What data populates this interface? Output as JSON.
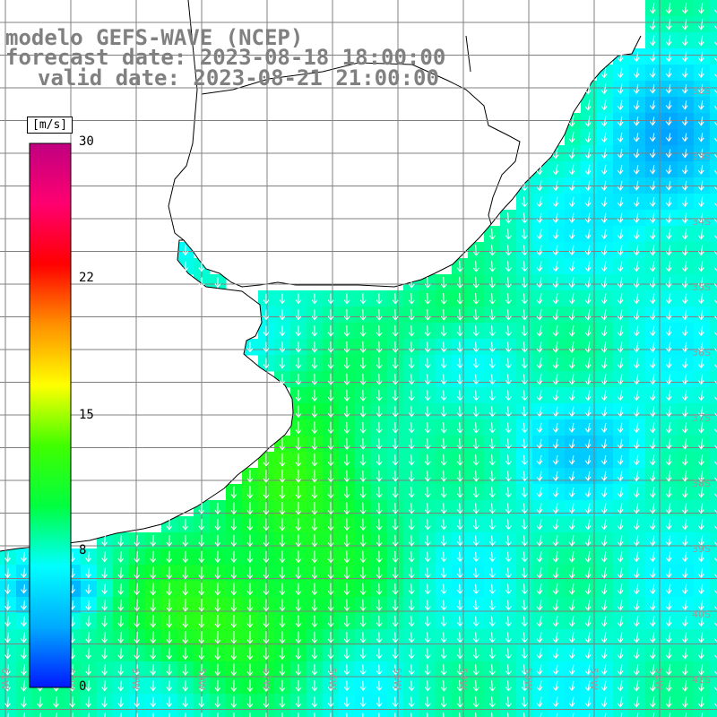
{
  "title": {
    "line1": "modelo GEFS-WAVE (NCEP)",
    "line2": "forecast date: 2023-08-18 18:00:00",
    "line3": "valid date: 2023-08-21 21:00:00"
  },
  "colorbar": {
    "unit": "[m/s]",
    "ticks": [
      {
        "label": "30",
        "value": 30
      },
      {
        "label": "22",
        "value": 22
      },
      {
        "label": "15",
        "value": 15
      },
      {
        "label": "8",
        "value": 8
      },
      {
        "label": "0",
        "value": 0
      }
    ],
    "min": 0,
    "max": 30,
    "colors": [
      "#0018ff",
      "#00aaff",
      "#00ffff",
      "#00ff40",
      "#40ff00",
      "#ffff00",
      "#ff9000",
      "#ff0000",
      "#ff0070",
      "#c00080"
    ]
  },
  "map": {
    "lon_min": -62,
    "lon_max": -51,
    "lat_min": -41,
    "lat_max": -30,
    "lon_labels": [
      "61W",
      "60W",
      "59W",
      "58W",
      "57W",
      "56W",
      "55W",
      "54W",
      "53W",
      "52W",
      "51W"
    ],
    "lat_labels": [
      "32S",
      "33S",
      "34S",
      "35S",
      "36S",
      "37S",
      "38S",
      "39S",
      "40S",
      "41S"
    ],
    "variable": "wind speed",
    "wind_direction": "from north (vectors point southward)"
  }
}
